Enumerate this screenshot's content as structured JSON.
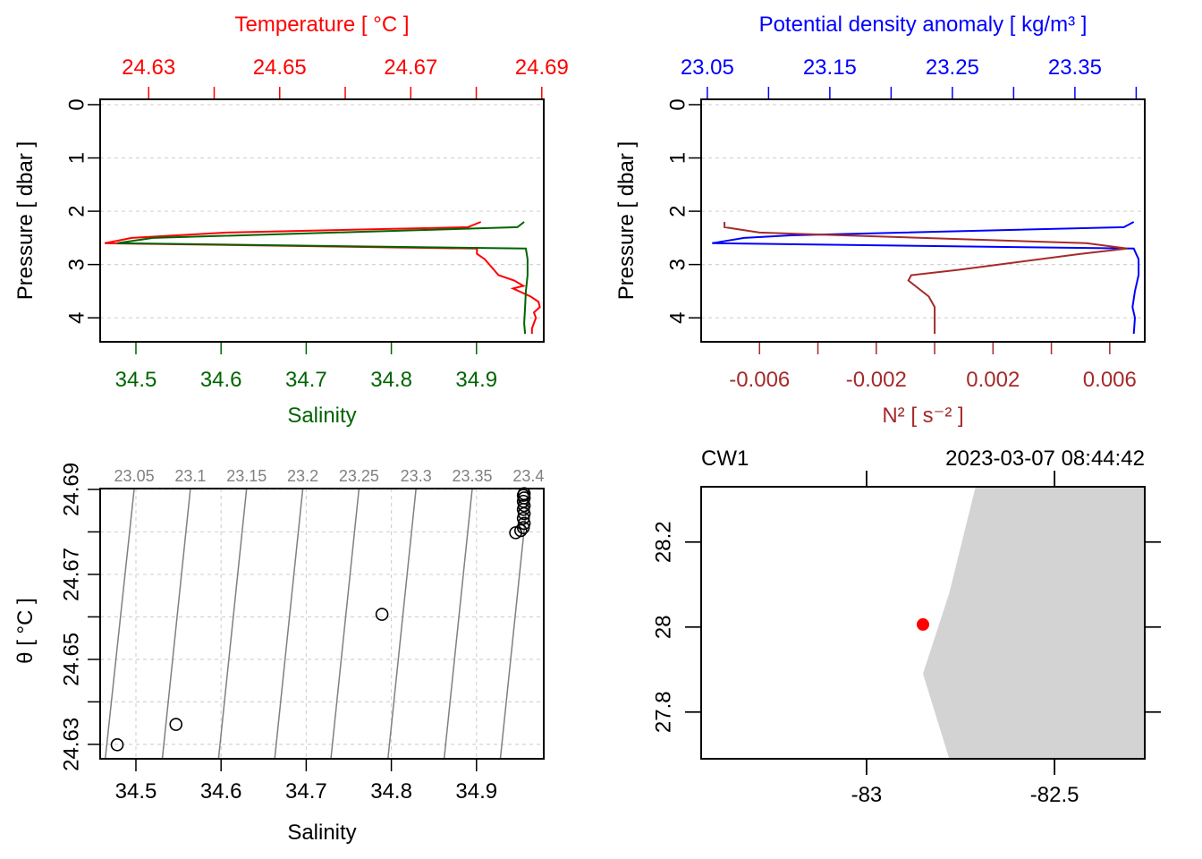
{
  "chart_data": [
    {
      "id": "profile_TS",
      "type": "line",
      "title": "",
      "top_axis_label": "Temperature [ °C ]",
      "top_axis_color": "#ff0000",
      "top_ticks": [
        "24.63",
        "24.65",
        "24.67",
        "24.69"
      ],
      "top_range": [
        24.6226,
        24.6903
      ],
      "bottom_axis_label": "Salinity",
      "bottom_axis_color": "#006400",
      "bottom_ticks": [
        "34.5",
        "34.6",
        "34.7",
        "34.8",
        "34.9"
      ],
      "bottom_range": [
        34.458,
        34.979
      ],
      "ylabel": "Pressure [ dbar ]",
      "y_ticks": [
        "0",
        "1",
        "2",
        "3",
        "4"
      ],
      "ylim": [
        4.45,
        -0.1
      ],
      "grid": true,
      "series": [
        {
          "name": "Temperature",
          "color": "#ff0000",
          "axis": "top",
          "points": [
            [
              24.6807,
              2.2
            ],
            [
              24.6787,
              2.3
            ],
            [
              24.6419,
              2.4
            ],
            [
              24.6274,
              2.5
            ],
            [
              24.6233,
              2.6
            ],
            [
              24.6801,
              2.7
            ],
            [
              24.6801,
              2.8
            ],
            [
              24.6813,
              2.9
            ],
            [
              24.6834,
              3.2
            ],
            [
              24.6858,
              3.3
            ],
            [
              24.6872,
              3.4
            ],
            [
              24.6856,
              3.45
            ],
            [
              24.6883,
              3.6
            ],
            [
              24.6895,
              3.7
            ],
            [
              24.6897,
              3.8
            ],
            [
              24.6888,
              3.9
            ],
            [
              24.6891,
              4.0
            ],
            [
              24.6885,
              4.2
            ],
            [
              24.6885,
              4.3
            ]
          ]
        },
        {
          "name": "Salinity",
          "color": "#006400",
          "axis": "bottom",
          "points": [
            [
              34.956,
              2.2
            ],
            [
              34.948,
              2.3
            ],
            [
              34.52,
              2.5
            ],
            [
              34.478,
              2.6
            ],
            [
              34.958,
              2.7
            ],
            [
              34.96,
              2.9
            ],
            [
              34.96,
              3.2
            ],
            [
              34.958,
              3.5
            ],
            [
              34.957,
              3.8
            ],
            [
              34.956,
              4.1
            ],
            [
              34.957,
              4.3
            ]
          ]
        }
      ]
    },
    {
      "id": "profile_density_N2",
      "type": "line",
      "top_axis_label": "Potential density anomaly [ kg/m³ ]",
      "top_axis_color": "#0000ff",
      "top_ticks": [
        "23.05",
        "23.15",
        "23.25",
        "23.35"
      ],
      "top_range": [
        23.045,
        23.407
      ],
      "bottom_axis_label": "N² [ s⁻² ]",
      "bottom_axis_color": "#a52a2a",
      "bottom_ticks": [
        "-0.006",
        "-0.002",
        "0.002",
        "0.006"
      ],
      "bottom_range": [
        -0.008,
        0.0072
      ],
      "ylabel": "Pressure [ dbar ]",
      "y_ticks": [
        "0",
        "1",
        "2",
        "3",
        "4"
      ],
      "ylim": [
        4.45,
        -0.1
      ],
      "grid": true,
      "series": [
        {
          "name": "Potential density anomaly",
          "color": "#0000ff",
          "axis": "top",
          "points": [
            [
              23.398,
              2.2
            ],
            [
              23.39,
              2.3
            ],
            [
              23.12,
              2.45
            ],
            [
              23.08,
              2.5
            ],
            [
              23.054,
              2.6
            ],
            [
              23.398,
              2.7
            ],
            [
              23.402,
              2.9
            ],
            [
              23.402,
              3.2
            ],
            [
              23.399,
              3.5
            ],
            [
              23.397,
              3.8
            ],
            [
              23.399,
              4.0
            ],
            [
              23.398,
              4.3
            ]
          ]
        },
        {
          "name": "N2",
          "color": "#a52a2a",
          "axis": "bottom",
          "points": [
            [
              -0.0072,
              2.2
            ],
            [
              -0.0072,
              2.3
            ],
            [
              -0.006,
              2.4
            ],
            [
              0.0052,
              2.6
            ],
            [
              0.0066,
              2.7
            ],
            [
              0.005,
              2.8
            ],
            [
              0.0008,
              3.1
            ],
            [
              -0.0008,
              3.2
            ],
            [
              -0.0009,
              3.3
            ],
            [
              -0.0002,
              3.6
            ],
            [
              0.0,
              3.8
            ],
            [
              0.0,
              4.3
            ]
          ]
        }
      ]
    },
    {
      "id": "TS_diagram",
      "type": "scatter",
      "xlabel": "Salinity",
      "ylabel": "θ [ °C ]",
      "x_ticks": [
        "34.5",
        "34.6",
        "34.7",
        "34.8",
        "34.9"
      ],
      "y_ticks": [
        "24.63",
        "24.65",
        "24.67",
        "24.69"
      ],
      "xlim": [
        34.458,
        34.979
      ],
      "ylim": [
        24.6266,
        24.6902
      ],
      "grid": true,
      "isopycnal_labels": [
        "23.05",
        "23.1",
        "23.15",
        "23.2",
        "23.25",
        "23.3",
        "23.35",
        "23.4"
      ],
      "isopycnal_color": "#808080",
      "isopycnals": [
        {
          "label": "23.05",
          "bottom_S": 34.464,
          "top_S": 34.498
        },
        {
          "label": "23.1",
          "bottom_S": 34.531,
          "top_S": 34.564
        },
        {
          "label": "23.15",
          "bottom_S": 34.597,
          "top_S": 34.63
        },
        {
          "label": "23.2",
          "bottom_S": 34.663,
          "top_S": 34.696
        },
        {
          "label": "23.25",
          "bottom_S": 34.729,
          "top_S": 34.762
        },
        {
          "label": "23.3",
          "bottom_S": 34.796,
          "top_S": 34.829
        },
        {
          "label": "23.35",
          "bottom_S": 34.862,
          "top_S": 34.895
        },
        {
          "label": "23.4",
          "bottom_S": 34.928,
          "top_S": 34.961
        }
      ],
      "points": [
        {
          "S": 34.478,
          "T": 24.6299
        },
        {
          "S": 34.547,
          "T": 24.6347
        },
        {
          "S": 34.789,
          "T": 24.6606
        },
        {
          "S": 34.946,
          "T": 24.6798
        },
        {
          "S": 34.952,
          "T": 24.6803
        },
        {
          "S": 34.955,
          "T": 24.681
        },
        {
          "S": 34.956,
          "T": 24.682
        },
        {
          "S": 34.955,
          "T": 24.6832
        },
        {
          "S": 34.956,
          "T": 24.6843
        },
        {
          "S": 34.955,
          "T": 24.6853
        },
        {
          "S": 34.956,
          "T": 24.6862
        },
        {
          "S": 34.955,
          "T": 24.6872
        },
        {
          "S": 34.956,
          "T": 24.688
        },
        {
          "S": 34.955,
          "T": 24.6886
        },
        {
          "S": 34.956,
          "T": 24.689
        }
      ]
    },
    {
      "id": "station_map",
      "type": "scatter",
      "title_left": "CW1",
      "title_right": "2023-03-07 08:44:42",
      "x_ticks": [
        "-83",
        "-82.5"
      ],
      "y_ticks": [
        "27.8",
        "28",
        "28.2"
      ],
      "xlim": [
        -83.44,
        -82.26
      ],
      "ylim": [
        27.69,
        28.33
      ],
      "land_color": "#d3d3d3",
      "land_polygon": [
        [
          -82.71,
          28.33
        ],
        [
          -82.26,
          28.33
        ],
        [
          -82.26,
          27.69
        ],
        [
          -82.78,
          27.69
        ],
        [
          -82.85,
          27.89
        ],
        [
          -82.78,
          28.08
        ],
        [
          -82.71,
          28.33
        ]
      ],
      "station": {
        "lon": -82.85,
        "lat": 28.006,
        "color": "#ff0000"
      }
    }
  ]
}
